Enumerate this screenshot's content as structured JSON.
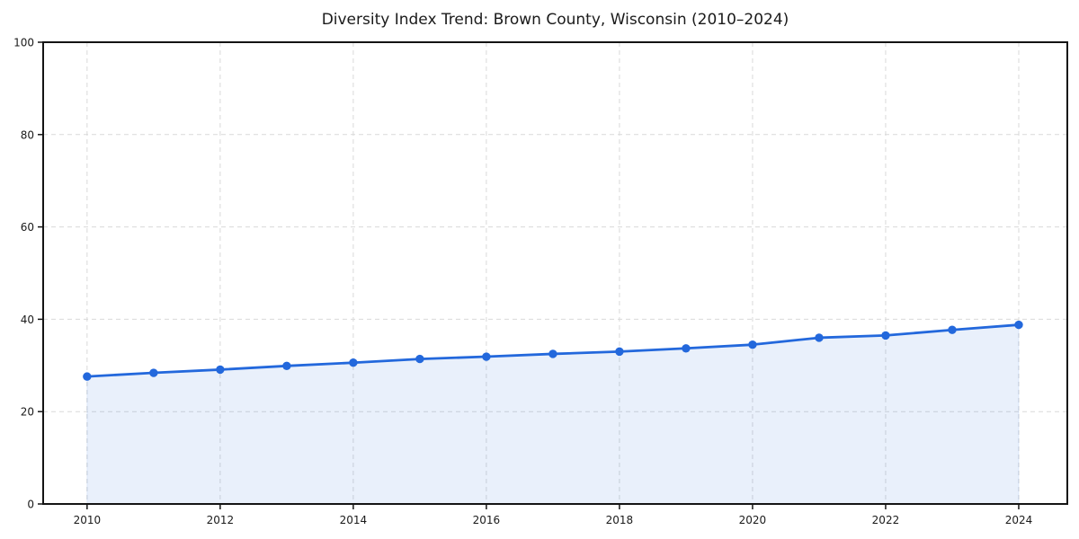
{
  "page": {
    "background_color": "#ffffff"
  },
  "chart_data": {
    "type": "line",
    "title": "Diversity Index Trend: Brown County, Wisconsin (2010–2024)",
    "xlabel": "",
    "ylabel": "",
    "x": [
      2010,
      2011,
      2012,
      2013,
      2014,
      2015,
      2016,
      2017,
      2018,
      2019,
      2020,
      2021,
      2022,
      2023,
      2024
    ],
    "series": [
      {
        "name": "Diversity Index",
        "values": [
          27.6,
          28.4,
          29.1,
          29.9,
          30.6,
          31.4,
          31.9,
          32.5,
          33.0,
          33.7,
          34.5,
          36.0,
          36.5,
          37.7,
          38.8
        ]
      }
    ],
    "xticks": [
      2010,
      2012,
      2014,
      2016,
      2018,
      2020,
      2022,
      2024
    ],
    "yticks": [
      0,
      20,
      40,
      60,
      80,
      100
    ],
    "xlim": [
      2009.34,
      2024.73
    ],
    "ylim": [
      0,
      100
    ],
    "grid": "dashed",
    "legend_position": "none",
    "marker": "circle",
    "area_fill": true,
    "colors": {
      "line": "#2368dc",
      "marker": "#2368dc",
      "fill": "rgba(35, 104, 220, 0.10)",
      "grid": "#d9d9d9",
      "frame": "#141414",
      "tick_text": "#1a1a1a",
      "title_text": "#1a1a1a",
      "background": "#ffffff"
    }
  }
}
